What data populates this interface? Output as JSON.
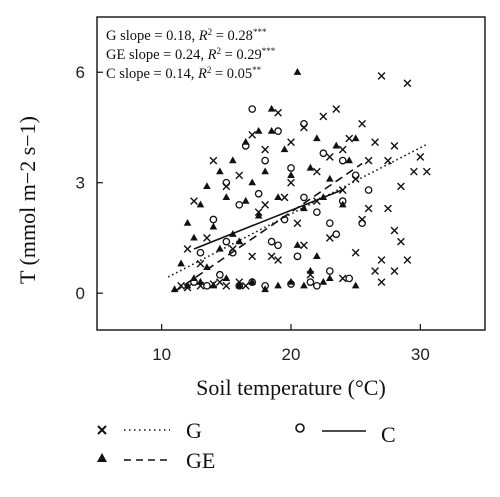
{
  "chart_data": {
    "type": "scatter",
    "title": "",
    "xlabel": "Soil temperature (°C)",
    "ylabel": "T (mmol m−2 s−1)",
    "xlim": [
      5,
      35
    ],
    "ylim": [
      -1,
      7.5
    ],
    "xticks": [
      10,
      20,
      30
    ],
    "yticks": [
      0,
      3,
      6
    ],
    "xtick_labels": [
      "10",
      "20",
      "30"
    ],
    "ytick_labels": [
      "0",
      "3",
      "6"
    ],
    "grid": false,
    "legend_position": "bottom",
    "annotations": [
      {
        "text": "G slope = 0.18, R2 = 0.28***",
        "parts": [
          "G slope = 0.18, ",
          "R",
          "2",
          " = 0.28",
          "***"
        ]
      },
      {
        "text": "GE slope = 0.24, R2 = 0.29***",
        "parts": [
          "GE slope = 0.24, ",
          "R",
          "2",
          " = 0.29",
          "***"
        ]
      },
      {
        "text": "C slope = 0.14, R2 = 0.05**",
        "parts": [
          "C slope = 0.14, ",
          "R",
          "2",
          " = 0.05",
          "**"
        ]
      }
    ],
    "series": [
      {
        "name": "G",
        "marker": "x",
        "line": "dotted",
        "fit": {
          "slope": 0.18,
          "r2": 0.28,
          "x_range": [
            10.5,
            30.5
          ],
          "intercept": -1.45
        },
        "points": [
          [
            11.5,
            0.2
          ],
          [
            12,
            1.2
          ],
          [
            12.5,
            2.5
          ],
          [
            13,
            0.8
          ],
          [
            13.5,
            1.5
          ],
          [
            14,
            3.6
          ],
          [
            14.5,
            0.3
          ],
          [
            15,
            2.9
          ],
          [
            15.5,
            1.2
          ],
          [
            16,
            3.2
          ],
          [
            16.5,
            0.2
          ],
          [
            17,
            4.3
          ],
          [
            17.5,
            2.2
          ],
          [
            18,
            3.9
          ],
          [
            18.5,
            1.0
          ],
          [
            19,
            4.9
          ],
          [
            19.5,
            2.6
          ],
          [
            20,
            4.1
          ],
          [
            20.5,
            1.9
          ],
          [
            21,
            4.5
          ],
          [
            21.5,
            0.5
          ],
          [
            22,
            3.3
          ],
          [
            22.5,
            4.8
          ],
          [
            23,
            1.5
          ],
          [
            23.5,
            5.0
          ],
          [
            24,
            2.8
          ],
          [
            24.5,
            4.2
          ],
          [
            25,
            1.1
          ],
          [
            25.5,
            4.6
          ],
          [
            26,
            3.6
          ],
          [
            26.5,
            0.6
          ],
          [
            27,
            5.9
          ],
          [
            27.5,
            2.3
          ],
          [
            28,
            4.0
          ],
          [
            28.5,
            1.4
          ],
          [
            29,
            5.7
          ],
          [
            29.5,
            3.3
          ],
          [
            30,
            3.7
          ],
          [
            30.5,
            3.3
          ],
          [
            27,
            0.9
          ],
          [
            28,
            1.7
          ],
          [
            26,
            2.3
          ],
          [
            25,
            3.1
          ],
          [
            24,
            0.4
          ],
          [
            23,
            3.7
          ],
          [
            22,
            2.5
          ],
          [
            21,
            1.3
          ],
          [
            20,
            3.0
          ],
          [
            19,
            0.9
          ],
          [
            18,
            2.4
          ],
          [
            17,
            1.0
          ],
          [
            16,
            0.3
          ],
          [
            15,
            0.2
          ],
          [
            14,
            0.25
          ],
          [
            13,
            0.2
          ],
          [
            12,
            0.15
          ],
          [
            24,
            3.9
          ],
          [
            25.5,
            2.0
          ],
          [
            26.5,
            4.1
          ],
          [
            27.5,
            3.6
          ],
          [
            28.5,
            2.9
          ],
          [
            29,
            0.9
          ],
          [
            27,
            0.3
          ],
          [
            28,
            0.6
          ]
        ]
      },
      {
        "name": "GE",
        "marker": "filled-triangle",
        "line": "dashed",
        "fit": {
          "slope": 0.24,
          "r2": 0.29,
          "x_range": [
            11,
            25.5
          ],
          "intercept": -2.6
        },
        "points": [
          [
            11,
            0.1
          ],
          [
            11.5,
            0.8
          ],
          [
            12,
            0.2
          ],
          [
            12,
            1.9
          ],
          [
            12.5,
            1.5
          ],
          [
            13,
            0.3
          ],
          [
            13,
            2.4
          ],
          [
            13.5,
            2.9
          ],
          [
            14,
            0.2
          ],
          [
            14,
            1.8
          ],
          [
            14.5,
            3.3
          ],
          [
            15,
            0.4
          ],
          [
            15,
            2.6
          ],
          [
            15.5,
            3.6
          ],
          [
            16,
            0.2
          ],
          [
            16,
            1.4
          ],
          [
            16.5,
            4.1
          ],
          [
            17,
            0.3
          ],
          [
            17,
            3.0
          ],
          [
            17.5,
            2.1
          ],
          [
            18,
            0.1
          ],
          [
            18,
            3.3
          ],
          [
            18.5,
            4.4
          ],
          [
            19,
            0.2
          ],
          [
            19,
            2.6
          ],
          [
            19.5,
            3.9
          ],
          [
            20,
            0.3
          ],
          [
            20,
            3.2
          ],
          [
            20.5,
            6.0
          ],
          [
            21,
            0.2
          ],
          [
            21,
            2.3
          ],
          [
            21.5,
            3.4
          ],
          [
            22,
            1.0
          ],
          [
            22,
            4.2
          ],
          [
            22.5,
            2.6
          ],
          [
            23,
            0.4
          ],
          [
            23,
            3.1
          ],
          [
            23.5,
            4.0
          ],
          [
            24,
            2.4
          ],
          [
            24.5,
            3.6
          ],
          [
            25,
            4.2
          ],
          [
            25,
            0.2
          ],
          [
            18.5,
            5.0
          ],
          [
            17.5,
            4.4
          ],
          [
            16.5,
            2.5
          ],
          [
            15.5,
            1.6
          ],
          [
            14.5,
            1.2
          ],
          [
            13.5,
            0.7
          ],
          [
            12.5,
            0.4
          ],
          [
            20.5,
            1.3
          ],
          [
            21.5,
            0.6
          ],
          [
            22.5,
            0.3
          ]
        ]
      },
      {
        "name": "C",
        "marker": "open-circle",
        "line": "solid",
        "fit": {
          "slope": 0.14,
          "r2": 0.05,
          "x_range": [
            12.5,
            24
          ],
          "intercept": -0.55
        },
        "points": [
          [
            12.5,
            0.3
          ],
          [
            13,
            1.1
          ],
          [
            13.5,
            0.2
          ],
          [
            14,
            2.0
          ],
          [
            14.5,
            0.5
          ],
          [
            15,
            3.0
          ],
          [
            15.5,
            1.1
          ],
          [
            16,
            2.4
          ],
          [
            16.5,
            4.0
          ],
          [
            17,
            0.3
          ],
          [
            17,
            5.0
          ],
          [
            17.5,
            2.7
          ],
          [
            18,
            3.6
          ],
          [
            18.5,
            1.4
          ],
          [
            19,
            4.4
          ],
          [
            19.5,
            2.0
          ],
          [
            20,
            3.4
          ],
          [
            20.5,
            1.0
          ],
          [
            21,
            4.6
          ],
          [
            21.5,
            0.3
          ],
          [
            22,
            2.2
          ],
          [
            22.5,
            3.8
          ],
          [
            23,
            0.6
          ],
          [
            23.5,
            1.6
          ],
          [
            24,
            2.5
          ],
          [
            24.5,
            0.4
          ],
          [
            25,
            3.2
          ],
          [
            25.5,
            1.9
          ],
          [
            26,
            2.8
          ],
          [
            16,
            0.2
          ],
          [
            18,
            0.2
          ],
          [
            20,
            0.25
          ],
          [
            22,
            0.2
          ],
          [
            19,
            1.3
          ],
          [
            21,
            2.6
          ],
          [
            15,
            1.4
          ],
          [
            23,
            1.9
          ],
          [
            24,
            3.6
          ]
        ]
      }
    ]
  },
  "legend": [
    {
      "series": "G",
      "marker": "x",
      "line": "dotted"
    },
    {
      "series": "C",
      "marker": "open-circle",
      "line": "solid"
    },
    {
      "series": "GE",
      "marker": "filled-triangle",
      "line": "dashed"
    }
  ]
}
